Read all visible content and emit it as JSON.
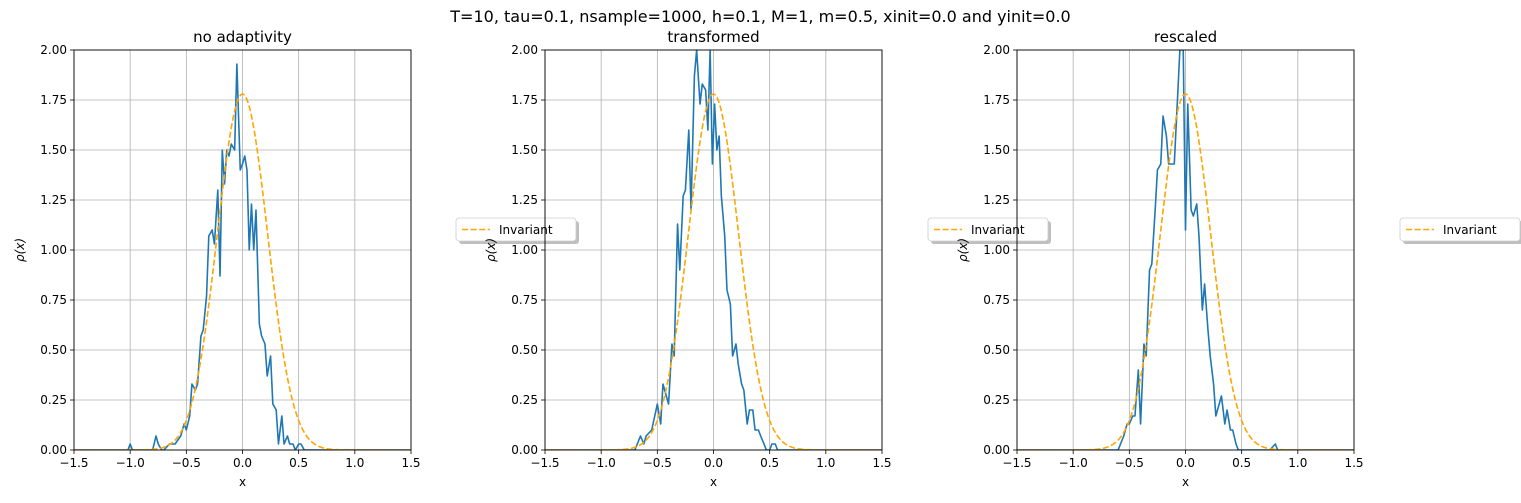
{
  "suptitle": "T=10, tau=0.1, nsample=1000, h=0.1, M=1, m=0.5, xinit=0.0 and yinit=0.0",
  "colors": {
    "empirical": "#1f77b4",
    "invariant": "#ffa500",
    "grid": "#b0b0b0"
  },
  "chart_data": [
    {
      "type": "line",
      "title": "no adaptivity",
      "xlabel": "x",
      "ylabel": "ρ(x)",
      "xlim": [
        -1.5,
        1.5
      ],
      "ylim": [
        0,
        2.0
      ],
      "xticks": [
        -1.5,
        -1.0,
        -0.5,
        0.0,
        0.5,
        1.0,
        1.5
      ],
      "xtick_labels": [
        "−1.5",
        "−1.0",
        "−0.5",
        "0.0",
        "0.5",
        "1.0",
        "1.5"
      ],
      "yticks": [
        0,
        0.25,
        0.5,
        0.75,
        1.0,
        1.25,
        1.5,
        1.75,
        2.0
      ],
      "ytick_labels": [
        "0.00",
        "0.25",
        "0.50",
        "0.75",
        "1.00",
        "1.25",
        "1.50",
        "1.75",
        "2.00"
      ],
      "grid": true,
      "legend": {
        "entries": [
          "Invariant"
        ],
        "placement": "outside-right-center",
        "text": "Invariant"
      },
      "series": [
        {
          "style": "solid",
          "color": "#1f77b4",
          "x": [
            -1.5,
            -1.05,
            -1.02,
            -1.0,
            -0.98,
            -0.95,
            -0.8,
            -0.77,
            -0.75,
            -0.72,
            -0.7,
            -0.65,
            -0.6,
            -0.55,
            -0.52,
            -0.5,
            -0.47,
            -0.45,
            -0.42,
            -0.4,
            -0.37,
            -0.35,
            -0.32,
            -0.3,
            -0.27,
            -0.25,
            -0.22,
            -0.2,
            -0.18,
            -0.16,
            -0.14,
            -0.12,
            -0.1,
            -0.07,
            -0.05,
            -0.02,
            0.0,
            0.02,
            0.04,
            0.06,
            0.08,
            0.1,
            0.12,
            0.15,
            0.17,
            0.2,
            0.22,
            0.25,
            0.27,
            0.3,
            0.32,
            0.35,
            0.37,
            0.4,
            0.42,
            0.45,
            0.47,
            0.5,
            0.52,
            0.55,
            0.57,
            0.6,
            0.62,
            0.65,
            0.67,
            0.7,
            0.72,
            0.75,
            0.77,
            0.8,
            0.82,
            0.85,
            1.5
          ],
          "y": [
            0,
            0,
            0,
            0.03,
            0,
            0,
            0,
            0.07,
            0.03,
            0,
            0,
            0.03,
            0.03,
            0.07,
            0.13,
            0.1,
            0.17,
            0.33,
            0.3,
            0.33,
            0.57,
            0.6,
            0.77,
            1.07,
            1.1,
            1.03,
            1.3,
            0.87,
            1.5,
            1.33,
            1.5,
            1.47,
            1.53,
            1.5,
            1.93,
            1.4,
            1.43,
            1.47,
            1.4,
            1.0,
            1.23,
            1.0,
            1.2,
            0.63,
            0.57,
            0.53,
            0.37,
            0.47,
            0.23,
            0.2,
            0.03,
            0.17,
            0.03,
            0.07,
            0.03,
            0.03,
            0,
            0.03,
            0.03,
            0,
            0,
            0,
            0,
            0,
            0,
            0,
            0,
            0,
            0,
            0,
            0,
            0,
            0
          ]
        },
        {
          "name": "Invariant",
          "style": "dashed",
          "color": "#ffa500",
          "distribution": "gaussian",
          "peak": 1.78,
          "sigma": 0.224
        }
      ]
    },
    {
      "type": "line",
      "title": "transformed",
      "xlabel": "x",
      "ylabel": "ρ(x)",
      "xlim": [
        -1.5,
        1.5
      ],
      "ylim": [
        0,
        2.0
      ],
      "xticks": [
        -1.5,
        -1.0,
        -0.5,
        0.0,
        0.5,
        1.0,
        1.5
      ],
      "xtick_labels": [
        "−1.5",
        "−1.0",
        "−0.5",
        "0.0",
        "0.5",
        "1.0",
        "1.5"
      ],
      "yticks": [
        0,
        0.25,
        0.5,
        0.75,
        1.0,
        1.25,
        1.5,
        1.75,
        2.0
      ],
      "ytick_labels": [
        "0.00",
        "0.25",
        "0.50",
        "0.75",
        "1.00",
        "1.25",
        "1.50",
        "1.75",
        "2.00"
      ],
      "grid": true,
      "legend": {
        "entries": [
          "Invariant"
        ],
        "placement": "outside-right-center",
        "text": "Invariant"
      },
      "series": [
        {
          "style": "solid",
          "color": "#1f77b4",
          "x": [
            -1.5,
            -0.7,
            -0.65,
            -0.62,
            -0.6,
            -0.55,
            -0.5,
            -0.47,
            -0.45,
            -0.42,
            -0.4,
            -0.37,
            -0.35,
            -0.32,
            -0.3,
            -0.27,
            -0.25,
            -0.22,
            -0.2,
            -0.17,
            -0.15,
            -0.12,
            -0.1,
            -0.07,
            -0.05,
            -0.03,
            -0.01,
            0.01,
            0.03,
            0.05,
            0.07,
            0.1,
            0.12,
            0.15,
            0.17,
            0.2,
            0.22,
            0.25,
            0.27,
            0.3,
            0.32,
            0.35,
            0.37,
            0.4,
            0.42,
            0.45,
            0.47,
            0.5,
            0.52,
            0.55,
            0.57,
            0.6,
            0.62,
            0.65,
            0.67,
            0.7,
            0.72,
            0.75,
            0.77,
            0.8,
            1.5
          ],
          "y": [
            0,
            0,
            0.07,
            0.03,
            0.07,
            0.1,
            0.23,
            0.13,
            0.33,
            0.27,
            0.23,
            0.53,
            0.47,
            1.13,
            0.9,
            1.27,
            1.3,
            1.6,
            1.2,
            1.87,
            2.0,
            1.73,
            1.83,
            1.8,
            1.6,
            2.0,
            1.43,
            1.73,
            1.5,
            1.57,
            1.27,
            1.07,
            0.8,
            0.73,
            0.47,
            0.53,
            0.43,
            0.33,
            0.3,
            0.13,
            0.2,
            0.2,
            0.1,
            0.1,
            0.07,
            0.03,
            0,
            0,
            0.03,
            0.03,
            0,
            0,
            0,
            0,
            0,
            0,
            0,
            0,
            0,
            0,
            0
          ]
        },
        {
          "name": "Invariant",
          "style": "dashed",
          "color": "#ffa500",
          "distribution": "gaussian",
          "peak": 1.78,
          "sigma": 0.224
        }
      ]
    },
    {
      "type": "line",
      "title": "rescaled",
      "xlabel": "x",
      "ylabel": "ρ(x)",
      "xlim": [
        -1.5,
        1.5
      ],
      "ylim": [
        0,
        2.0
      ],
      "xticks": [
        -1.5,
        -1.0,
        -0.5,
        0.0,
        0.5,
        1.0,
        1.5
      ],
      "xtick_labels": [
        "−1.5",
        "−1.0",
        "−0.5",
        "0.0",
        "0.5",
        "1.0",
        "1.5"
      ],
      "yticks": [
        0,
        0.25,
        0.5,
        0.75,
        1.0,
        1.25,
        1.5,
        1.75,
        2.0
      ],
      "ytick_labels": [
        "0.00",
        "0.25",
        "0.50",
        "0.75",
        "1.00",
        "1.25",
        "1.50",
        "1.75",
        "2.00"
      ],
      "grid": true,
      "legend": {
        "entries": [
          "Invariant"
        ],
        "placement": "outside-right-center",
        "text": "Invariant"
      },
      "series": [
        {
          "style": "solid",
          "color": "#1f77b4",
          "x": [
            -1.5,
            -0.6,
            -0.55,
            -0.52,
            -0.5,
            -0.47,
            -0.45,
            -0.42,
            -0.4,
            -0.37,
            -0.35,
            -0.32,
            -0.3,
            -0.27,
            -0.25,
            -0.22,
            -0.2,
            -0.17,
            -0.15,
            -0.12,
            -0.1,
            -0.07,
            -0.05,
            -0.02,
            0.0,
            0.02,
            0.05,
            0.07,
            0.1,
            0.12,
            0.15,
            0.17,
            0.2,
            0.22,
            0.25,
            0.27,
            0.3,
            0.32,
            0.35,
            0.37,
            0.4,
            0.42,
            0.45,
            0.47,
            0.5,
            0.52,
            0.55,
            0.57,
            0.6,
            0.62,
            0.65,
            0.7,
            0.75,
            0.8,
            0.82,
            0.85,
            1.5
          ],
          "y": [
            0,
            0,
            0.07,
            0.13,
            0.13,
            0.17,
            0.17,
            0.4,
            0.13,
            0.53,
            0.47,
            0.9,
            0.93,
            1.2,
            1.4,
            1.43,
            1.67,
            1.57,
            1.43,
            1.43,
            1.43,
            1.77,
            2.0,
            2.0,
            1.1,
            1.73,
            1.2,
            1.17,
            1.23,
            1.07,
            0.7,
            0.83,
            0.6,
            0.47,
            0.33,
            0.17,
            0.23,
            0.27,
            0.13,
            0.2,
            0.1,
            0.1,
            0.03,
            0,
            0,
            0,
            0,
            0,
            0,
            0,
            0,
            0,
            0,
            0.03,
            0,
            0,
            0
          ]
        },
        {
          "name": "Invariant",
          "style": "dashed",
          "color": "#ffa500",
          "distribution": "gaussian",
          "peak": 1.78,
          "sigma": 0.224
        }
      ]
    }
  ]
}
